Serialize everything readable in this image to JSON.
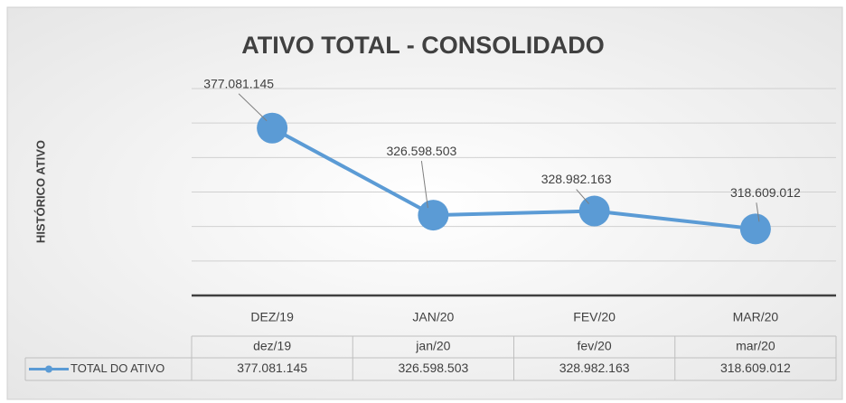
{
  "chart_data": {
    "type": "line",
    "title": "ATIVO TOTAL - CONSOLIDADO",
    "y_label": "HISTÓRICO ATIVO",
    "categories": [
      "DEZ/19",
      "JAN/20",
      "FEV/20",
      "MAR/20"
    ],
    "series": [
      {
        "name": "TOTAL DO ATIVO",
        "color": "#5b9bd5",
        "values": [
          377081145,
          326598503,
          328982163,
          318609012
        ],
        "value_labels": [
          "377.081.145",
          "326.598.503",
          "328.982.163",
          "318.609.012"
        ]
      }
    ],
    "ylim": [
      280000000,
      400000000
    ],
    "yticks": [
      280000000,
      300000000,
      320000000,
      340000000,
      360000000,
      380000000,
      400000000
    ],
    "grid": true,
    "data_table": {
      "categories": [
        "dez/19",
        "jan/20",
        "fev/20",
        "mar/20"
      ]
    }
  }
}
